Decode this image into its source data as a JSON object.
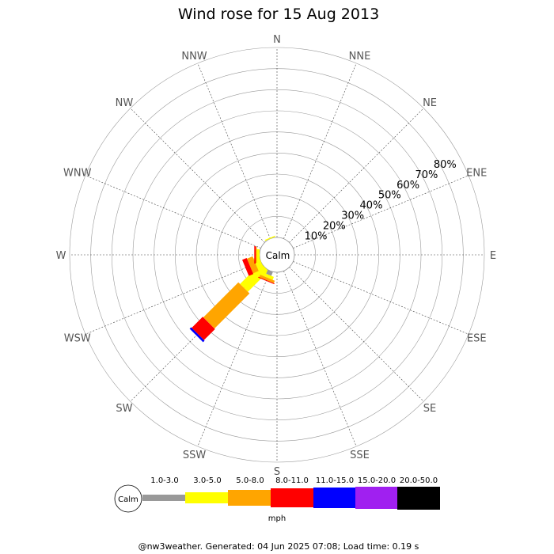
{
  "chart_data": {
    "type": "wind-rose",
    "title": "Wind rose for 15 Aug 2013",
    "directions": [
      "N",
      "NNE",
      "NE",
      "ENE",
      "E",
      "ESE",
      "SE",
      "SSE",
      "S",
      "SSW",
      "SW",
      "WSW",
      "W",
      "WNW",
      "NW",
      "NNW"
    ],
    "ring_labels": [
      "10%",
      "20%",
      "30%",
      "40%",
      "50%",
      "60%",
      "70%",
      "80%"
    ],
    "max_percent": 90,
    "center_label": "Calm",
    "speed_bins": [
      {
        "label": "",
        "color": "#999999"
      },
      {
        "label": "1.0-3.0",
        "color": "#ffff00"
      },
      {
        "label": "3.0-5.0",
        "color": "#ffa500"
      },
      {
        "label": "5.0-8.0",
        "color": "#ff0000"
      },
      {
        "label": "8.0-11.0",
        "color": "#0000ff"
      },
      {
        "label": "11.0-15.0",
        "color": "#a020f0"
      },
      {
        "label": "15.0-20.0",
        "color": "#000000"
      },
      {
        "label": "20.0-50.0",
        "color": ""
      }
    ],
    "legend_unit": "mph",
    "legend_calm_label": "Calm",
    "series": [
      {
        "direction": "SW",
        "segments": [
          0,
          13.9,
          23.5,
          7.4,
          1.0,
          0,
          0
        ]
      },
      {
        "direction": "WSW",
        "segments": [
          0,
          2.7,
          2.9,
          2.3,
          0,
          0,
          0
        ]
      },
      {
        "direction": "W",
        "segments": [
          0,
          1.3,
          0.5,
          0.7,
          0,
          0,
          0
        ]
      },
      {
        "direction": "SSW",
        "segments": [
          2.0,
          1.5,
          1.2,
          0.4,
          0,
          0,
          0
        ]
      },
      {
        "direction": "NNW",
        "segments": [
          0,
          0.5,
          0,
          0,
          0,
          0,
          0
        ]
      }
    ]
  },
  "footer": "@nw3weather. Generated: 04 Jun 2025 07:08; Load time: 0.19 s"
}
